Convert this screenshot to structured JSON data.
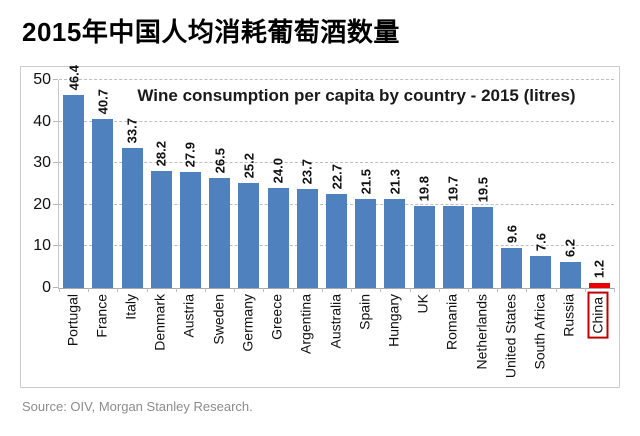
{
  "page": {
    "title": "2015年中国人均消耗葡萄酒数量",
    "source": "Source: OIV, Morgan Stanley Research."
  },
  "chart_data": {
    "type": "bar",
    "title": "Wine consumption per capita by country - 2015 (litres)",
    "categories": [
      "Portugal",
      "France",
      "Italy",
      "Denmark",
      "Austria",
      "Sweden",
      "Germany",
      "Greece",
      "Argentina",
      "Australia",
      "Spain",
      "Hungary",
      "UK",
      "Romania",
      "Netherlands",
      "United States",
      "South Africa",
      "Russia",
      "China"
    ],
    "values": [
      46.4,
      40.7,
      33.7,
      28.2,
      27.9,
      26.5,
      25.2,
      24.0,
      23.7,
      22.7,
      21.5,
      21.3,
      19.8,
      19.7,
      19.5,
      9.6,
      7.6,
      6.2,
      1.2
    ],
    "value_labels": [
      "46.4",
      "40.7",
      "33.7",
      "28.2",
      "27.9",
      "26.5",
      "25.2",
      "24.0",
      "23.7",
      "22.7",
      "21.5",
      "21.3",
      "19.8",
      "19.7",
      "19.5",
      "9.6",
      "7.6",
      "6.2",
      "1.2"
    ],
    "xlabel": "",
    "ylabel": "",
    "ylim": [
      0,
      50
    ],
    "yticks": [
      0,
      10,
      20,
      30,
      40,
      50
    ],
    "grid": "horizontal-dashed",
    "legend": "none",
    "label_rotation": "vertical-bottom-up",
    "bar_color": "#4E81BD",
    "highlight_category": "China",
    "highlight_color": "#EE0000",
    "highlight_box_color": "#C00000"
  }
}
